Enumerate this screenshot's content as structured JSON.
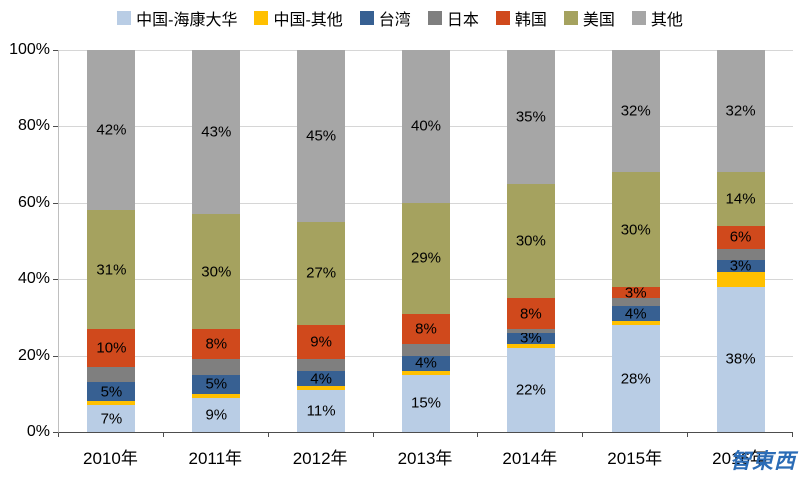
{
  "chart_data": {
    "type": "bar",
    "subtype": "stacked-100-percent",
    "categories": [
      "2010年",
      "2011年",
      "2012年",
      "2013年",
      "2014年",
      "2015年",
      "2016年"
    ],
    "series": [
      {
        "name": "中国-海康大华",
        "color": "#B9CDE5",
        "values": [
          7,
          9,
          11,
          15,
          22,
          28,
          38
        ],
        "labels": [
          "7%",
          "9%",
          "11%",
          "15%",
          "22%",
          "28%",
          "38%"
        ]
      },
      {
        "name": "中国-其他",
        "color": "#FFC000",
        "values": [
          1,
          1,
          1,
          1,
          1,
          1,
          4
        ],
        "labels": [
          "",
          "",
          "",
          "",
          "",
          "",
          ""
        ]
      },
      {
        "name": "台湾",
        "color": "#376092",
        "values": [
          5,
          5,
          4,
          4,
          3,
          4,
          3
        ],
        "labels": [
          "5%",
          "5%",
          "4%",
          "4%",
          "3%",
          "4%",
          "3%"
        ]
      },
      {
        "name": "日本",
        "color": "#7F7F7F",
        "values": [
          4,
          4,
          3,
          3,
          1,
          2,
          3
        ],
        "labels": [
          "",
          "",
          "",
          "",
          "",
          "",
          ""
        ]
      },
      {
        "name": "韩国",
        "color": "#D0491C",
        "values": [
          10,
          8,
          9,
          8,
          8,
          3,
          6
        ],
        "labels": [
          "10%",
          "8%",
          "9%",
          "8%",
          "8%",
          "3%",
          "6%"
        ]
      },
      {
        "name": "美国",
        "color": "#A5A25F",
        "values": [
          31,
          30,
          27,
          29,
          30,
          30,
          14
        ],
        "labels": [
          "31%",
          "30%",
          "27%",
          "29%",
          "30%",
          "30%",
          "14%"
        ]
      },
      {
        "name": "其他",
        "color": "#A6A6A6",
        "values": [
          42,
          43,
          45,
          40,
          35,
          32,
          32
        ],
        "labels": [
          "42%",
          "43%",
          "45%",
          "40%",
          "35%",
          "32%",
          "32%"
        ]
      }
    ],
    "y_ticks": [
      "100%",
      "80%",
      "60%",
      "40%",
      "20%",
      "0%"
    ],
    "ylim": [
      0,
      100
    ],
    "grid": true,
    "legend_position": "top",
    "title": "",
    "xlabel": "",
    "ylabel": ""
  },
  "watermark": {
    "text": "智東西",
    "color": "#2B6CB6"
  }
}
